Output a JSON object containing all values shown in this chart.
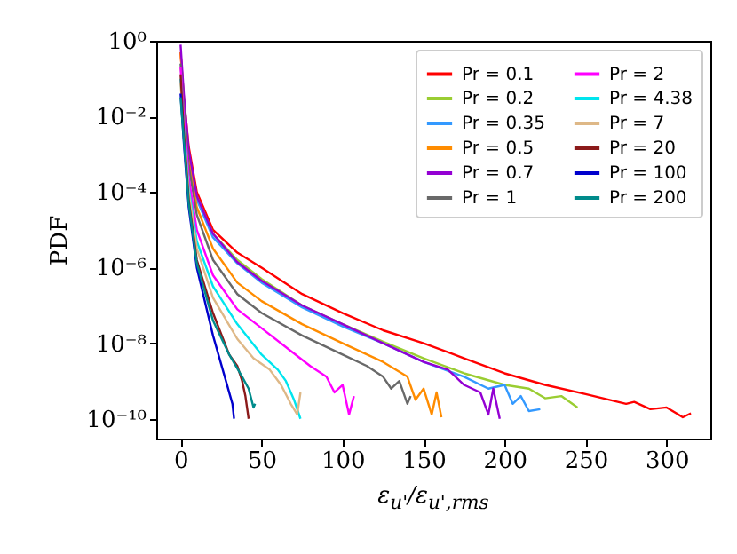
{
  "chart_data": {
    "type": "line",
    "xlabel": "ε$_{u'}$/ε$_{u',rms}$",
    "ylabel": "PDF",
    "log": "y",
    "legend": "top right",
    "grid": false,
    "xlim": [
      -15,
      327
    ],
    "xticks": [
      0,
      50,
      100,
      150,
      200,
      250,
      300
    ],
    "ylim": [
      3e-11,
      1
    ],
    "yticks": [
      {
        "value": 1,
        "label": "10⁰"
      },
      {
        "value": 0.01,
        "label": "10⁻²"
      },
      {
        "value": 0.0001,
        "label": "10⁻⁴"
      },
      {
        "value": 1e-06,
        "label": "10⁻⁶"
      },
      {
        "value": 1e-08,
        "label": "10⁻⁸"
      },
      {
        "value": 1e-10,
        "label": "10⁻¹⁰"
      }
    ],
    "series": [
      {
        "name": "Pr = 0.1",
        "color": "#ff0000",
        "x": [
          0,
          2,
          5,
          10,
          20,
          35,
          50,
          75,
          100,
          125,
          150,
          175,
          200,
          225,
          250,
          275,
          280,
          290,
          300,
          310,
          315
        ],
        "values": [
          0.5,
          0.032,
          0.0016,
          0.0001,
          1e-05,
          2.5e-06,
          1e-06,
          2e-07,
          6.3e-08,
          2.2e-08,
          1e-08,
          4e-09,
          1.6e-09,
          7.9e-10,
          4.5e-10,
          2.5e-10,
          2.8e-10,
          1.8e-10,
          2e-10,
          1.1e-10,
          1.4e-10
        ]
      },
      {
        "name": "Pr = 0.2",
        "color": "#9acd32",
        "x": [
          10,
          20,
          35,
          50,
          75,
          100,
          125,
          150,
          175,
          200,
          215,
          225,
          235,
          245
        ],
        "values": [
          7.9e-05,
          7.9e-06,
          1.6e-06,
          5e-07,
          1e-07,
          3.2e-08,
          1.1e-08,
          4e-09,
          1.6e-09,
          7.9e-10,
          6.3e-10,
          3.5e-10,
          4e-10,
          2e-10
        ]
      },
      {
        "name": "Pr = 0.35",
        "color": "#3399ff",
        "x": [
          5,
          10,
          20,
          35,
          50,
          75,
          100,
          125,
          150,
          175,
          190,
          200,
          205,
          210,
          215,
          222
        ],
        "values": [
          0.001,
          6.3e-05,
          6.3e-06,
          1.3e-06,
          4e-07,
          8.9e-08,
          2.8e-08,
          1e-08,
          3.2e-09,
          1.3e-09,
          6.3e-10,
          7.9e-10,
          2.5e-10,
          4e-10,
          1.6e-10,
          1.8e-10
        ]
      },
      {
        "name": "Pr = 0.5",
        "color": "#ff8c00",
        "x": [
          0,
          2,
          5,
          10,
          20,
          35,
          50,
          75,
          100,
          125,
          140,
          145,
          150,
          155,
          158,
          161
        ],
        "values": [
          0.5,
          0.025,
          0.00079,
          4e-05,
          3.2e-06,
          4e-07,
          1.3e-07,
          3.2e-08,
          1e-08,
          3.2e-09,
          1.3e-09,
          3.2e-10,
          6.3e-10,
          1.3e-10,
          5e-10,
          1.1e-10
        ]
      },
      {
        "name": "Pr = 0.7",
        "color": "#9400d3",
        "x": [
          0,
          2,
          5,
          10,
          20,
          35,
          50,
          75,
          100,
          125,
          150,
          165,
          175,
          185,
          190,
          193,
          197
        ],
        "values": [
          0.79,
          0.04,
          0.0013,
          7.9e-05,
          7.9e-06,
          1.4e-06,
          4.5e-07,
          1e-07,
          3.2e-08,
          1e-08,
          3.2e-09,
          2e-09,
          7.9e-10,
          5e-10,
          1.3e-10,
          6.3e-10,
          1e-10
        ]
      },
      {
        "name": "Pr = 1",
        "color": "#696969",
        "x": [
          0,
          2,
          5,
          10,
          20,
          35,
          50,
          75,
          100,
          115,
          125,
          130,
          135,
          140,
          142
        ],
        "values": [
          0.25,
          0.016,
          0.0005,
          2.5e-05,
          1.6e-06,
          2e-07,
          6.3e-08,
          1.6e-08,
          5e-09,
          2.5e-09,
          1.3e-09,
          6.3e-10,
          1e-09,
          2.5e-10,
          4e-10
        ]
      },
      {
        "name": "Pr = 2",
        "color": "#ff00ff",
        "x": [
          0,
          2,
          5,
          10,
          20,
          35,
          50,
          65,
          80,
          90,
          95,
          100,
          104,
          107
        ],
        "values": [
          0.2,
          0.01,
          0.00025,
          1e-05,
          6.3e-07,
          7.9e-08,
          2.5e-08,
          7.9e-09,
          2.5e-09,
          1.3e-09,
          5e-10,
          7.9e-10,
          1.3e-10,
          4e-10
        ]
      },
      {
        "name": "Pr = 4.38",
        "color": "#00e5ee",
        "x": [
          0,
          2,
          5,
          10,
          20,
          35,
          50,
          60,
          65,
          70,
          74
        ],
        "values": [
          0.1,
          0.005,
          0.00013,
          5e-06,
          3.2e-07,
          3.2e-08,
          5e-09,
          2e-09,
          1e-09,
          3.2e-10,
          1e-10
        ]
      },
      {
        "name": "Pr = 7",
        "color": "#deb887",
        "x": [
          0,
          2,
          5,
          10,
          20,
          35,
          45,
          55,
          62,
          68,
          72,
          74
        ],
        "values": [
          0.079,
          0.004,
          0.0001,
          3.2e-06,
          1.6e-07,
          1.3e-08,
          4e-09,
          2e-09,
          7.9e-10,
          2.5e-10,
          1.3e-10,
          5e-10
        ]
      },
      {
        "name": "Pr = 20",
        "color": "#8b1a1a",
        "x": [
          0,
          2,
          5,
          10,
          20,
          30,
          35,
          38,
          40,
          42
        ],
        "values": [
          0.13,
          0.004,
          6.3e-05,
          1.6e-06,
          6.3e-08,
          5e-09,
          2.5e-09,
          1e-09,
          4e-10,
          1e-10
        ]
      },
      {
        "name": "Pr = 100",
        "color": "#0000cd",
        "x": [
          0,
          2,
          5,
          10,
          20,
          28,
          32,
          33
        ],
        "values": [
          0.04,
          0.002,
          4e-05,
          1e-06,
          1.6e-08,
          1e-09,
          2.5e-10,
          1e-10
        ]
      },
      {
        "name": "Pr = 200",
        "color": "#008b8b",
        "x": [
          0,
          2,
          5,
          10,
          20,
          30,
          38,
          42,
          45,
          46
        ],
        "values": [
          0.032,
          0.0025,
          5e-05,
          1.3e-06,
          4e-08,
          5e-09,
          1.3e-09,
          6.3e-10,
          2e-10,
          2.5e-10
        ]
      }
    ]
  }
}
